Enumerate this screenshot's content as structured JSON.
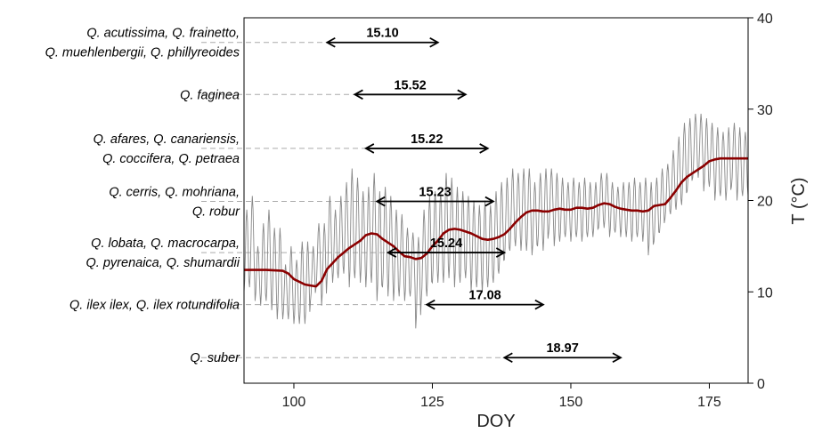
{
  "chart_data": {
    "type": "line",
    "title": "",
    "xlabel": "DOY",
    "ylabel": "T (°C)",
    "xlim": [
      91,
      182
    ],
    "ylim": [
      0,
      40
    ],
    "x_ticks": [
      100,
      125,
      150,
      175
    ],
    "y_ticks": [
      0,
      10,
      20,
      30,
      40
    ],
    "y_axis_side": "right",
    "grid": false,
    "legend": "none",
    "series": [
      {
        "role": "daily temperature (hourly)",
        "color": "#888888",
        "waves": [
          [
            91,
            14.5,
            9
          ],
          [
            92,
            15.5,
            10
          ],
          [
            93,
            12,
            6
          ],
          [
            94,
            13,
            9
          ],
          [
            95,
            14,
            10
          ],
          [
            96,
            12.5,
            9
          ],
          [
            97,
            12,
            10
          ],
          [
            98,
            10,
            6
          ],
          [
            99,
            11,
            8
          ],
          [
            100,
            10,
            7
          ],
          [
            101,
            11,
            9
          ],
          [
            102,
            11,
            9
          ],
          [
            103,
            12,
            6
          ],
          [
            104,
            14,
            7
          ],
          [
            105,
            13,
            9
          ],
          [
            106,
            16,
            9
          ],
          [
            107,
            15,
            8
          ],
          [
            108,
            16,
            9
          ],
          [
            109,
            17,
            10
          ],
          [
            110,
            17,
            13
          ],
          [
            111,
            17,
            11
          ],
          [
            112,
            16,
            10
          ],
          [
            113,
            16,
            11
          ],
          [
            114,
            17,
            12
          ],
          [
            115,
            15,
            12
          ],
          [
            116,
            16,
            11
          ],
          [
            117,
            15,
            11
          ],
          [
            118,
            14,
            10
          ],
          [
            119,
            14,
            9
          ],
          [
            120,
            13,
            8
          ],
          [
            121,
            13,
            7
          ],
          [
            122,
            11,
            10
          ],
          [
            123,
            14,
            10
          ],
          [
            124,
            15,
            11
          ],
          [
            125,
            16,
            10
          ],
          [
            126,
            16,
            10
          ],
          [
            127,
            17,
            12
          ],
          [
            128,
            17,
            11
          ],
          [
            129,
            16,
            11
          ],
          [
            130,
            16,
            10
          ],
          [
            131,
            16,
            9
          ],
          [
            132,
            15,
            10
          ],
          [
            133,
            15,
            9
          ],
          [
            134,
            15,
            10
          ],
          [
            135,
            15,
            9
          ],
          [
            136,
            16,
            10
          ],
          [
            137,
            17,
            10
          ],
          [
            138,
            18,
            9
          ],
          [
            139,
            19,
            9
          ],
          [
            140,
            19,
            8
          ],
          [
            141,
            19,
            9
          ],
          [
            142,
            19,
            9
          ],
          [
            143,
            18,
            8
          ],
          [
            144,
            19,
            8
          ],
          [
            145,
            19,
            9
          ],
          [
            146,
            20,
            7
          ],
          [
            147,
            19,
            8
          ],
          [
            148,
            19,
            7
          ],
          [
            149,
            19,
            6
          ],
          [
            150,
            19,
            7
          ],
          [
            151,
            19,
            6
          ],
          [
            152,
            19,
            7
          ],
          [
            153,
            19,
            6
          ],
          [
            154,
            19,
            6
          ],
          [
            155,
            20,
            6
          ],
          [
            156,
            20,
            6
          ],
          [
            157,
            19,
            6
          ],
          [
            158,
            19,
            5
          ],
          [
            159,
            19,
            6
          ],
          [
            160,
            19,
            6
          ],
          [
            161,
            19,
            7
          ],
          [
            162,
            19,
            6
          ],
          [
            163,
            19,
            7
          ],
          [
            164,
            18,
            8
          ],
          [
            165,
            19,
            7
          ],
          [
            166,
            20,
            7
          ],
          [
            167,
            21,
            6
          ],
          [
            168,
            22,
            7
          ],
          [
            169,
            23,
            8
          ],
          [
            170,
            24,
            9
          ],
          [
            171,
            25,
            8
          ],
          [
            172,
            26,
            7
          ],
          [
            173,
            26,
            7
          ],
          [
            174,
            25,
            8
          ],
          [
            175,
            25,
            7
          ],
          [
            176,
            24,
            8
          ],
          [
            177,
            24,
            7
          ],
          [
            178,
            24,
            8
          ],
          [
            179,
            25,
            7
          ],
          [
            180,
            24,
            8
          ],
          [
            181,
            24,
            7
          ],
          [
            182,
            24,
            7
          ]
        ]
      },
      {
        "role": "smoothed mean temperature",
        "color": "#8b0000",
        "x": [
          91,
          95,
          98,
          99,
          100,
          102,
          103,
          104,
          105,
          106,
          108,
          110,
          112,
          113,
          114,
          115,
          116,
          117,
          118,
          119,
          120,
          121,
          122,
          123,
          124,
          125,
          126,
          127,
          128,
          129,
          130,
          131,
          132,
          133,
          134,
          135,
          136,
          137,
          138,
          139,
          140,
          141,
          142,
          143,
          144,
          145,
          146,
          147,
          148,
          149,
          150,
          151,
          152,
          153,
          154,
          155,
          156,
          157,
          158,
          159,
          160,
          161,
          162,
          163,
          164,
          165,
          166,
          167,
          168,
          169,
          170,
          171,
          172,
          173,
          174,
          175,
          176,
          177,
          178,
          179,
          180,
          181,
          182
        ],
        "y": [
          12.4,
          12.4,
          12.3,
          12.0,
          11.4,
          10.8,
          10.7,
          10.6,
          11.2,
          12.5,
          13.8,
          14.8,
          15.6,
          16.2,
          16.4,
          16.3,
          15.8,
          15.4,
          15.0,
          14.4,
          13.9,
          13.8,
          13.6,
          13.7,
          14.2,
          15.0,
          15.6,
          16.4,
          16.8,
          16.9,
          16.8,
          16.6,
          16.4,
          16.1,
          15.8,
          15.7,
          15.8,
          16.0,
          16.3,
          16.9,
          17.6,
          18.2,
          18.7,
          18.9,
          18.9,
          18.8,
          18.8,
          19.0,
          19.1,
          19.0,
          19.0,
          19.2,
          19.2,
          19.1,
          19.2,
          19.5,
          19.7,
          19.6,
          19.3,
          19.1,
          19.0,
          18.9,
          18.9,
          18.8,
          18.9,
          19.4,
          19.5,
          19.6,
          20.3,
          21.1,
          22.0,
          22.6,
          23.0,
          23.4,
          23.8,
          24.3,
          24.5,
          24.6,
          24.6,
          24.6,
          24.6,
          24.6,
          24.6
        ]
      }
    ],
    "ranges": [
      {
        "label_lines": [
          "Q. acutissima, Q. frainetto,",
          "Q. muehlenbergii, Q. phillyreoides"
        ],
        "value": "15.10",
        "y": 37.3,
        "x_start": 106,
        "x_end": 126
      },
      {
        "label_lines": [
          "Q. faginea"
        ],
        "value": "15.52",
        "y": 31.6,
        "x_start": 111,
        "x_end": 131
      },
      {
        "label_lines": [
          "Q. afares, Q. canariensis,",
          "Q. coccifera, Q. petraea"
        ],
        "value": "15.22",
        "y": 25.7,
        "x_start": 113,
        "x_end": 135
      },
      {
        "label_lines": [
          "Q. cerris, Q. mohriana,",
          "Q. robur"
        ],
        "value": "15.23",
        "y": 19.9,
        "x_start": 115,
        "x_end": 136
      },
      {
        "label_lines": [
          "Q. lobata, Q. macrocarpa,",
          "Q. pyrenaica, Q. shumardii"
        ],
        "value": "15.24",
        "y": 14.3,
        "x_start": 117,
        "x_end": 138
      },
      {
        "label_lines": [
          "Q. ilex ilex, Q. ilex rotundifolia"
        ],
        "value": "17.08",
        "y": 8.6,
        "x_start": 124,
        "x_end": 145
      },
      {
        "label_lines": [
          "Q. suber"
        ],
        "value": "18.97",
        "y": 2.8,
        "x_start": 138,
        "x_end": 159
      }
    ]
  }
}
